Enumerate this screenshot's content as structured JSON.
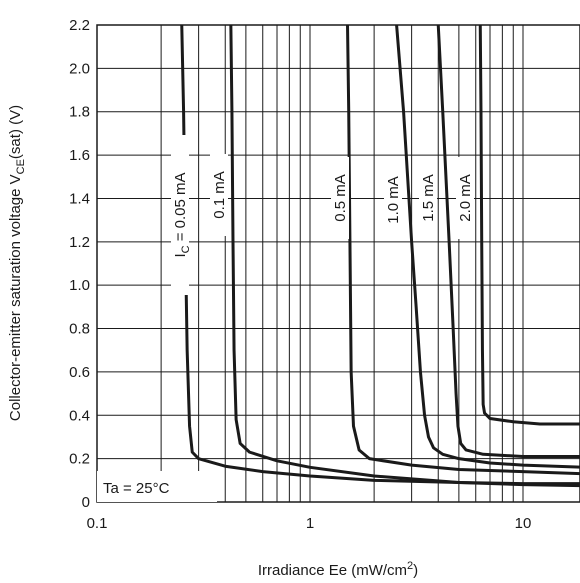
{
  "chart_data": {
    "type": "line",
    "x_scale": "log",
    "xlim": [
      0.1,
      20
    ],
    "ylim": [
      0,
      2.2
    ],
    "grid": true,
    "xlabel": "Irradiance Ee (mW/cm²)",
    "xlabel_parts": {
      "main": "Irradiance Ee (mW/cm",
      "sup": "2",
      "end": ")"
    },
    "ylabel": "Collector-emitter saturation voltage VCE(sat) (V)",
    "ylabel_parts": {
      "main": "Collector-emitter saturation voltage V",
      "sub": "CE",
      "end": "(sat) (V)"
    },
    "x_tick_labels": [
      {
        "value": 0.1,
        "label": "0.1"
      },
      {
        "value": 1,
        "label": "1"
      },
      {
        "value": 10,
        "label": "10"
      }
    ],
    "y_tick_labels": [
      {
        "value": 0,
        "label": "0"
      },
      {
        "value": 0.2,
        "label": "0.2"
      },
      {
        "value": 0.4,
        "label": "0.4"
      },
      {
        "value": 0.6,
        "label": "0.6"
      },
      {
        "value": 0.8,
        "label": "0.8"
      },
      {
        "value": 1.0,
        "label": "1.0"
      },
      {
        "value": 1.2,
        "label": "1.2"
      },
      {
        "value": 1.4,
        "label": "1.4"
      },
      {
        "value": 1.6,
        "label": "1.6"
      },
      {
        "value": 1.8,
        "label": "1.8"
      },
      {
        "value": 2.0,
        "label": "2.0"
      },
      {
        "value": 2.2,
        "label": "2.2"
      }
    ],
    "annotation": "Ta = 25°C",
    "series": [
      {
        "name": "I_C = 0.05 mA",
        "label_parts": {
          "main": "I",
          "sub": "C",
          "end": " = 0.05 mA"
        },
        "x": [
          0.25,
          0.255,
          0.26,
          0.265,
          0.272,
          0.28,
          0.3,
          0.4,
          0.6,
          1,
          2,
          5,
          10,
          20
        ],
        "y": [
          2.2,
          1.8,
          1.2,
          0.7,
          0.35,
          0.23,
          0.2,
          0.165,
          0.14,
          0.12,
          0.1,
          0.09,
          0.085,
          0.085
        ]
      },
      {
        "name": "0.1 mA",
        "label_parts": {
          "main": "0.1 mA"
        },
        "x": [
          0.425,
          0.43,
          0.435,
          0.44,
          0.45,
          0.47,
          0.52,
          0.7,
          1,
          2,
          5,
          10,
          20
        ],
        "y": [
          2.2,
          1.8,
          1.2,
          0.7,
          0.38,
          0.27,
          0.23,
          0.19,
          0.16,
          0.12,
          0.09,
          0.08,
          0.075
        ]
      },
      {
        "name": "0.5 mA",
        "label_parts": {
          "main": "0.5 mA"
        },
        "x": [
          1.5,
          1.52,
          1.54,
          1.56,
          1.6,
          1.7,
          1.9,
          3,
          5,
          10,
          20
        ],
        "y": [
          2.2,
          1.8,
          1.2,
          0.6,
          0.35,
          0.24,
          0.2,
          0.17,
          0.15,
          0.14,
          0.13
        ]
      },
      {
        "name": "1.0 mA",
        "label_parts": {
          "main": "1.0 mA"
        },
        "x": [
          2.55,
          2.75,
          3.0,
          3.15,
          3.3,
          3.45,
          3.6,
          3.8,
          4.2,
          5,
          7,
          10,
          20
        ],
        "y": [
          2.2,
          1.8,
          1.2,
          0.9,
          0.6,
          0.4,
          0.3,
          0.25,
          0.22,
          0.2,
          0.18,
          0.17,
          0.16
        ]
      },
      {
        "name": "1.5 mA",
        "label_parts": {
          "main": "1.5 mA"
        },
        "x": [
          4.0,
          4.2,
          4.5,
          4.7,
          4.85,
          4.95,
          5.1,
          5.4,
          6.5,
          10,
          20
        ],
        "y": [
          2.2,
          1.8,
          1.2,
          0.8,
          0.5,
          0.35,
          0.27,
          0.24,
          0.22,
          0.21,
          0.21
        ]
      },
      {
        "name": "2.0 mA",
        "label_parts": {
          "main": "2.0 mA"
        },
        "x": [
          6.3,
          6.35,
          6.4,
          6.45,
          6.5,
          6.6,
          7,
          9,
          12,
          20
        ],
        "y": [
          2.2,
          1.8,
          1.2,
          0.7,
          0.45,
          0.41,
          0.385,
          0.37,
          0.36,
          0.36
        ]
      }
    ]
  }
}
